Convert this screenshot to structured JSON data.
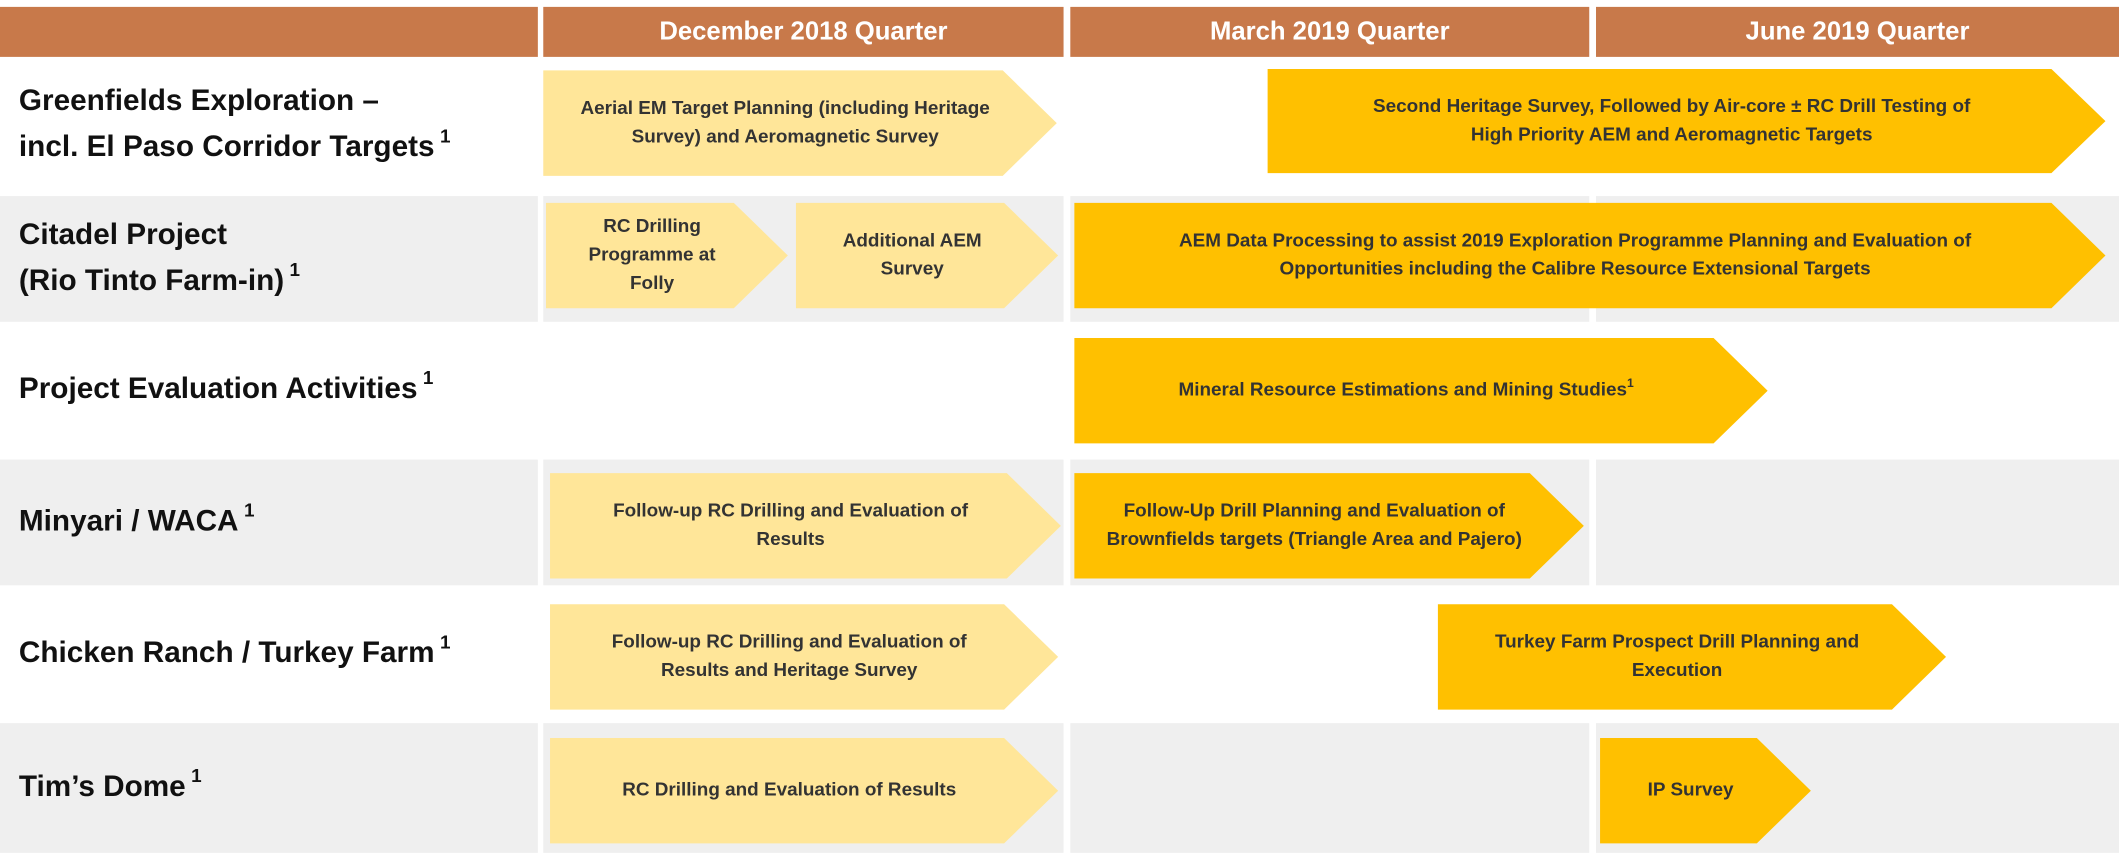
{
  "header": {
    "columns": [
      "December 2018 Quarter",
      "March 2019 Quarter",
      "June 2019 Quarter"
    ]
  },
  "rows": [
    {
      "label": [
        "Greenfields Exploration –",
        "incl. El Paso Corridor Targets"
      ],
      "note": "1",
      "activities": [
        {
          "lines": [
            "Aerial EM Target Planning (including Heritage",
            "Survey) and Aeromagnetic Survey"
          ],
          "color": "#FFE699"
        },
        {
          "lines": [
            "Second Heritage Survey, Followed by Air-core ± RC Drill Testing of",
            "High Priority AEM and Aeromagnetic Targets"
          ],
          "color": "#FFC000"
        }
      ]
    },
    {
      "label": [
        "Citadel Project",
        "(Rio Tinto Farm-in)"
      ],
      "note": "1",
      "activities": [
        {
          "lines": [
            "RC Drilling",
            "Programme at",
            "Folly"
          ],
          "color": "#FFE699"
        },
        {
          "lines": [
            "Additional AEM",
            "Survey"
          ],
          "color": "#FFE699"
        },
        {
          "lines": [
            "AEM Data Processing to assist 2019 Exploration Programme Planning and Evaluation of",
            "Opportunities including the Calibre Resource Extensional Targets"
          ],
          "color": "#FFC000"
        }
      ]
    },
    {
      "label": [
        "Project Evaluation Activities"
      ],
      "note": "1",
      "activities": [
        {
          "lines": [
            "Mineral Resource Estimations and Mining Studies"
          ],
          "note": "1",
          "color": "#FFC000"
        }
      ]
    },
    {
      "label": [
        "Minyari / WACA"
      ],
      "note": "1",
      "activities": [
        {
          "lines": [
            "Follow-up RC Drilling and Evaluation of",
            "Results"
          ],
          "color": "#FFE699"
        },
        {
          "lines": [
            "Follow-Up Drill Planning and Evaluation of",
            "Brownfields targets (Triangle Area and Pajero)"
          ],
          "color": "#FFC000"
        }
      ]
    },
    {
      "label": [
        "Chicken Ranch / Turkey Farm"
      ],
      "note": "1",
      "activities": [
        {
          "lines": [
            "Follow-up RC Drilling and Evaluation of",
            "Results and Heritage Survey"
          ],
          "color": "#FFE699"
        },
        {
          "lines": [
            "Turkey Farm Prospect Drill Planning and",
            "Execution"
          ],
          "color": "#FFC000"
        }
      ]
    },
    {
      "label": [
        "Tim’s Dome"
      ],
      "note": "1",
      "activities": [
        {
          "lines": [
            "RC Drilling and Evaluation of Results"
          ],
          "color": "#FFE699"
        },
        {
          "lines": [
            "IP Survey"
          ],
          "color": "#FFC000"
        }
      ]
    }
  ]
}
